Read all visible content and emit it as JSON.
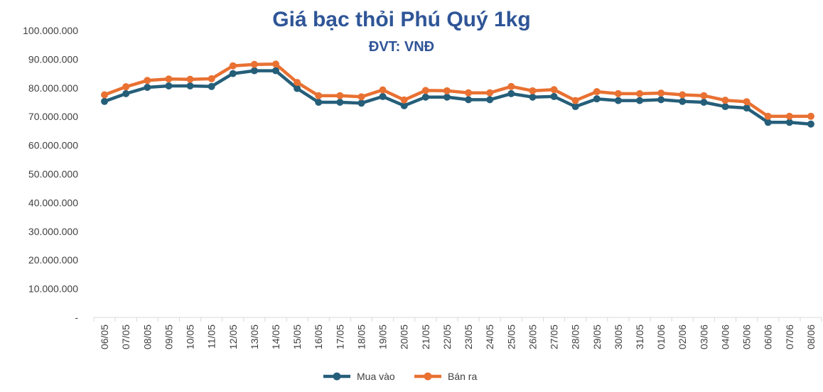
{
  "chart_data": {
    "type": "line",
    "title": "Giá bạc thỏi Phú Quý 1kg",
    "subtitle": "ĐVT: VNĐ",
    "xlabel": "",
    "ylabel": "",
    "ylim": [
      0,
      100000000
    ],
    "y_ticks": [
      {
        "value": 100000000,
        "label": "100.000.000"
      },
      {
        "value": 90000000,
        "label": "90.000.000"
      },
      {
        "value": 80000000,
        "label": "80.000.000"
      },
      {
        "value": 70000000,
        "label": "70.000.000"
      },
      {
        "value": 60000000,
        "label": "60.000.000"
      },
      {
        "value": 50000000,
        "label": "50.000.000"
      },
      {
        "value": 40000000,
        "label": "40.000.000"
      },
      {
        "value": 30000000,
        "label": "30.000.000"
      },
      {
        "value": 20000000,
        "label": "20.000.000"
      },
      {
        "value": 10000000,
        "label": "10.000.000"
      },
      {
        "value": 0,
        "label": "-"
      }
    ],
    "grid": false,
    "legend_position": "bottom",
    "categories": [
      "06/05",
      "07/05",
      "08/05",
      "09/05",
      "10/05",
      "11/05",
      "12/05",
      "13/05",
      "14/05",
      "15/05",
      "16/05",
      "17/05",
      "18/05",
      "19/05",
      "20/05",
      "21/05",
      "22/05",
      "23/05",
      "24/05",
      "25/05",
      "26/05",
      "27/05",
      "28/05",
      "29/05",
      "30/05",
      "31/05",
      "01/06",
      "02/06",
      "03/06",
      "04/06",
      "05/06",
      "06/06",
      "07/06",
      "08/06"
    ],
    "series": [
      {
        "name": "Mua vào",
        "color": "#255E79",
        "values": [
          75300000,
          78000000,
          80200000,
          80700000,
          80700000,
          80500000,
          85000000,
          86000000,
          86000000,
          79800000,
          75000000,
          75000000,
          74700000,
          77000000,
          73800000,
          76800000,
          76800000,
          75900000,
          75900000,
          78000000,
          76800000,
          77000000,
          73500000,
          76200000,
          75600000,
          75600000,
          75900000,
          75300000,
          75000000,
          73500000,
          73000000,
          68000000,
          68000000,
          67400000
        ]
      },
      {
        "name": "Bán ra",
        "color": "#E97132",
        "values": [
          77600000,
          80400000,
          82600000,
          83100000,
          83000000,
          83200000,
          87700000,
          88200000,
          88300000,
          81900000,
          77300000,
          77300000,
          76900000,
          79300000,
          75800000,
          79100000,
          79000000,
          78300000,
          78300000,
          80500000,
          79000000,
          79400000,
          75600000,
          78700000,
          78000000,
          78000000,
          78200000,
          77600000,
          77300000,
          75700000,
          75200000,
          70100000,
          70100000,
          70100000
        ]
      }
    ]
  }
}
